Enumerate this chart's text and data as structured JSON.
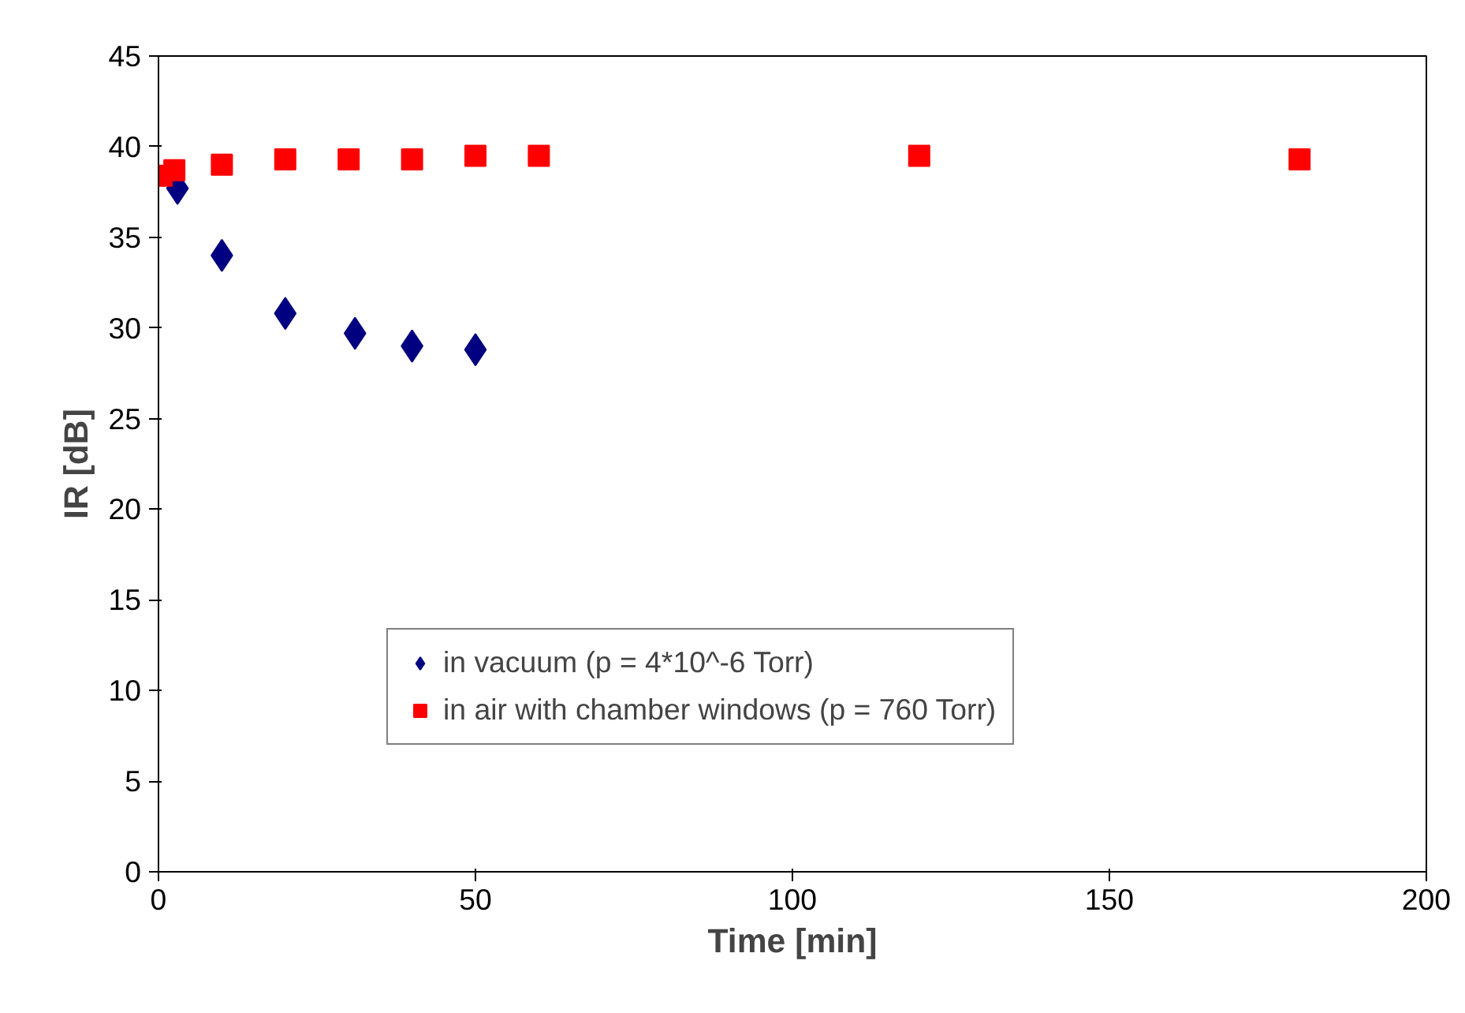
{
  "chart_data": {
    "type": "scatter",
    "xlabel": "Time [min]",
    "ylabel": "IR [dB]",
    "xlim": [
      0,
      200
    ],
    "xticks": [
      0,
      50,
      100,
      150,
      200
    ],
    "ylim": [
      0,
      45
    ],
    "yticks": [
      0,
      5,
      10,
      15,
      20,
      25,
      30,
      35,
      40,
      45
    ],
    "grid": false,
    "legend": "bottom",
    "series": [
      {
        "name": "in vacuum (p = 4*10^-6 Torr)",
        "color": "#000080",
        "marker": "diamond",
        "x": [
          3,
          10,
          20,
          31,
          40,
          50
        ],
        "values": [
          37.7,
          34.0,
          30.8,
          29.7,
          29.0,
          28.8
        ]
      },
      {
        "name": "in air with chamber windows (p = 760 Torr)",
        "color": "#ff0000",
        "marker": "square",
        "x": [
          0.5,
          2.5,
          10,
          20,
          30,
          40,
          50,
          60,
          120,
          180
        ],
        "values": [
          38.4,
          38.7,
          39.0,
          39.3,
          39.3,
          39.3,
          39.5,
          39.5,
          39.5,
          39.3
        ]
      }
    ]
  }
}
